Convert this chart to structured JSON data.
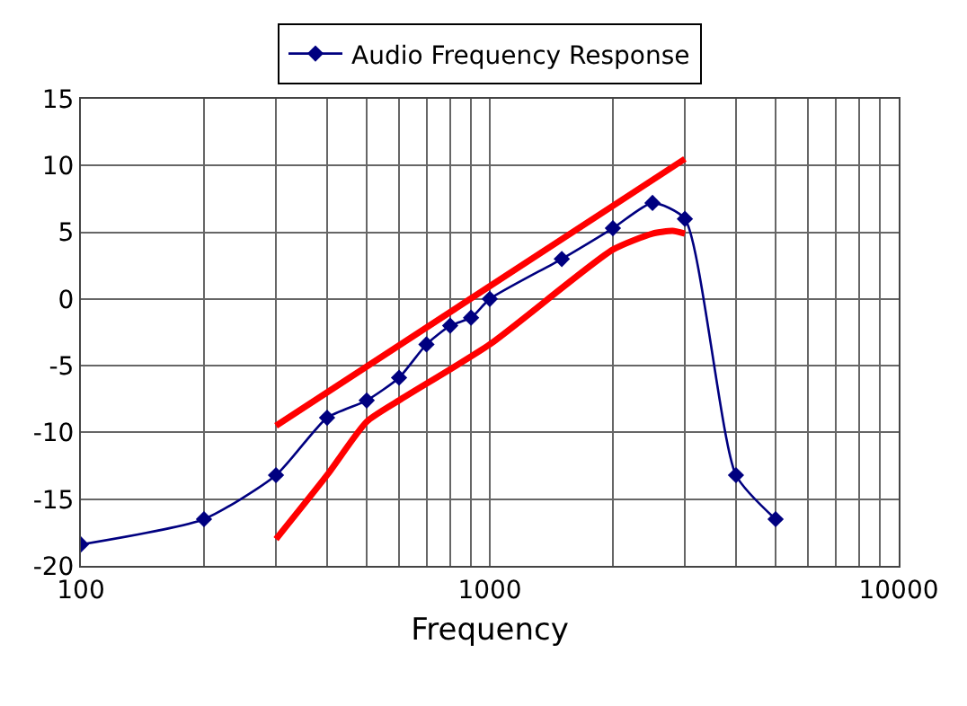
{
  "chart_data": {
    "type": "line",
    "xlabel": "Frequency",
    "log": "x",
    "grid": true,
    "legend": "top",
    "xlim": [
      100,
      10000
    ],
    "xticks": [
      100,
      {
        "value": 200,
        "label": null
      },
      {
        "value": 300,
        "label": null
      },
      {
        "value": 400,
        "label": null
      },
      {
        "value": 500,
        "label": null
      },
      {
        "value": 600,
        "label": null
      },
      {
        "value": 700,
        "label": null
      },
      {
        "value": 800,
        "label": null
      },
      {
        "value": 900,
        "label": null
      },
      1000,
      {
        "value": 2000,
        "label": null
      },
      {
        "value": 3000,
        "label": null
      },
      {
        "value": 4000,
        "label": null
      },
      {
        "value": 5000,
        "label": null
      },
      {
        "value": 6000,
        "label": null
      },
      {
        "value": 7000,
        "label": null
      },
      {
        "value": 8000,
        "label": null
      },
      {
        "value": 9000,
        "label": null
      },
      10000
    ],
    "ylim": [
      -20,
      15
    ],
    "yticks": [
      -20,
      -15,
      -10,
      -5,
      0,
      5,
      10,
      15
    ],
    "series": [
      {
        "name": "Audio Frequency Response",
        "color": "#000080",
        "marker": "diamond",
        "x": [
          100,
          200,
          300,
          400,
          500,
          600,
          700,
          800,
          900,
          1000,
          1500,
          2000,
          2500,
          3000,
          4000,
          5000
        ],
        "values": [
          -18.4,
          -16.5,
          -13.2,
          -8.9,
          -7.6,
          -5.9,
          -3.4,
          -2.0,
          -1.4,
          0,
          3.0,
          5.3,
          7.2,
          6.0,
          -13.2,
          -16.5
        ]
      },
      {
        "color": "#ff0000",
        "marker": "none",
        "x": [
          300,
          3000
        ],
        "values": [
          -9.5,
          10.5
        ]
      },
      {
        "color": "#ff0000",
        "marker": "none",
        "x": [
          300,
          400,
          500,
          600,
          1000,
          2000,
          2500,
          2800,
          3000
        ],
        "values": [
          -18,
          -13.2,
          -9.2,
          -7.6,
          -3.4,
          3.7,
          4.9,
          5.1,
          4.9
        ]
      }
    ]
  }
}
